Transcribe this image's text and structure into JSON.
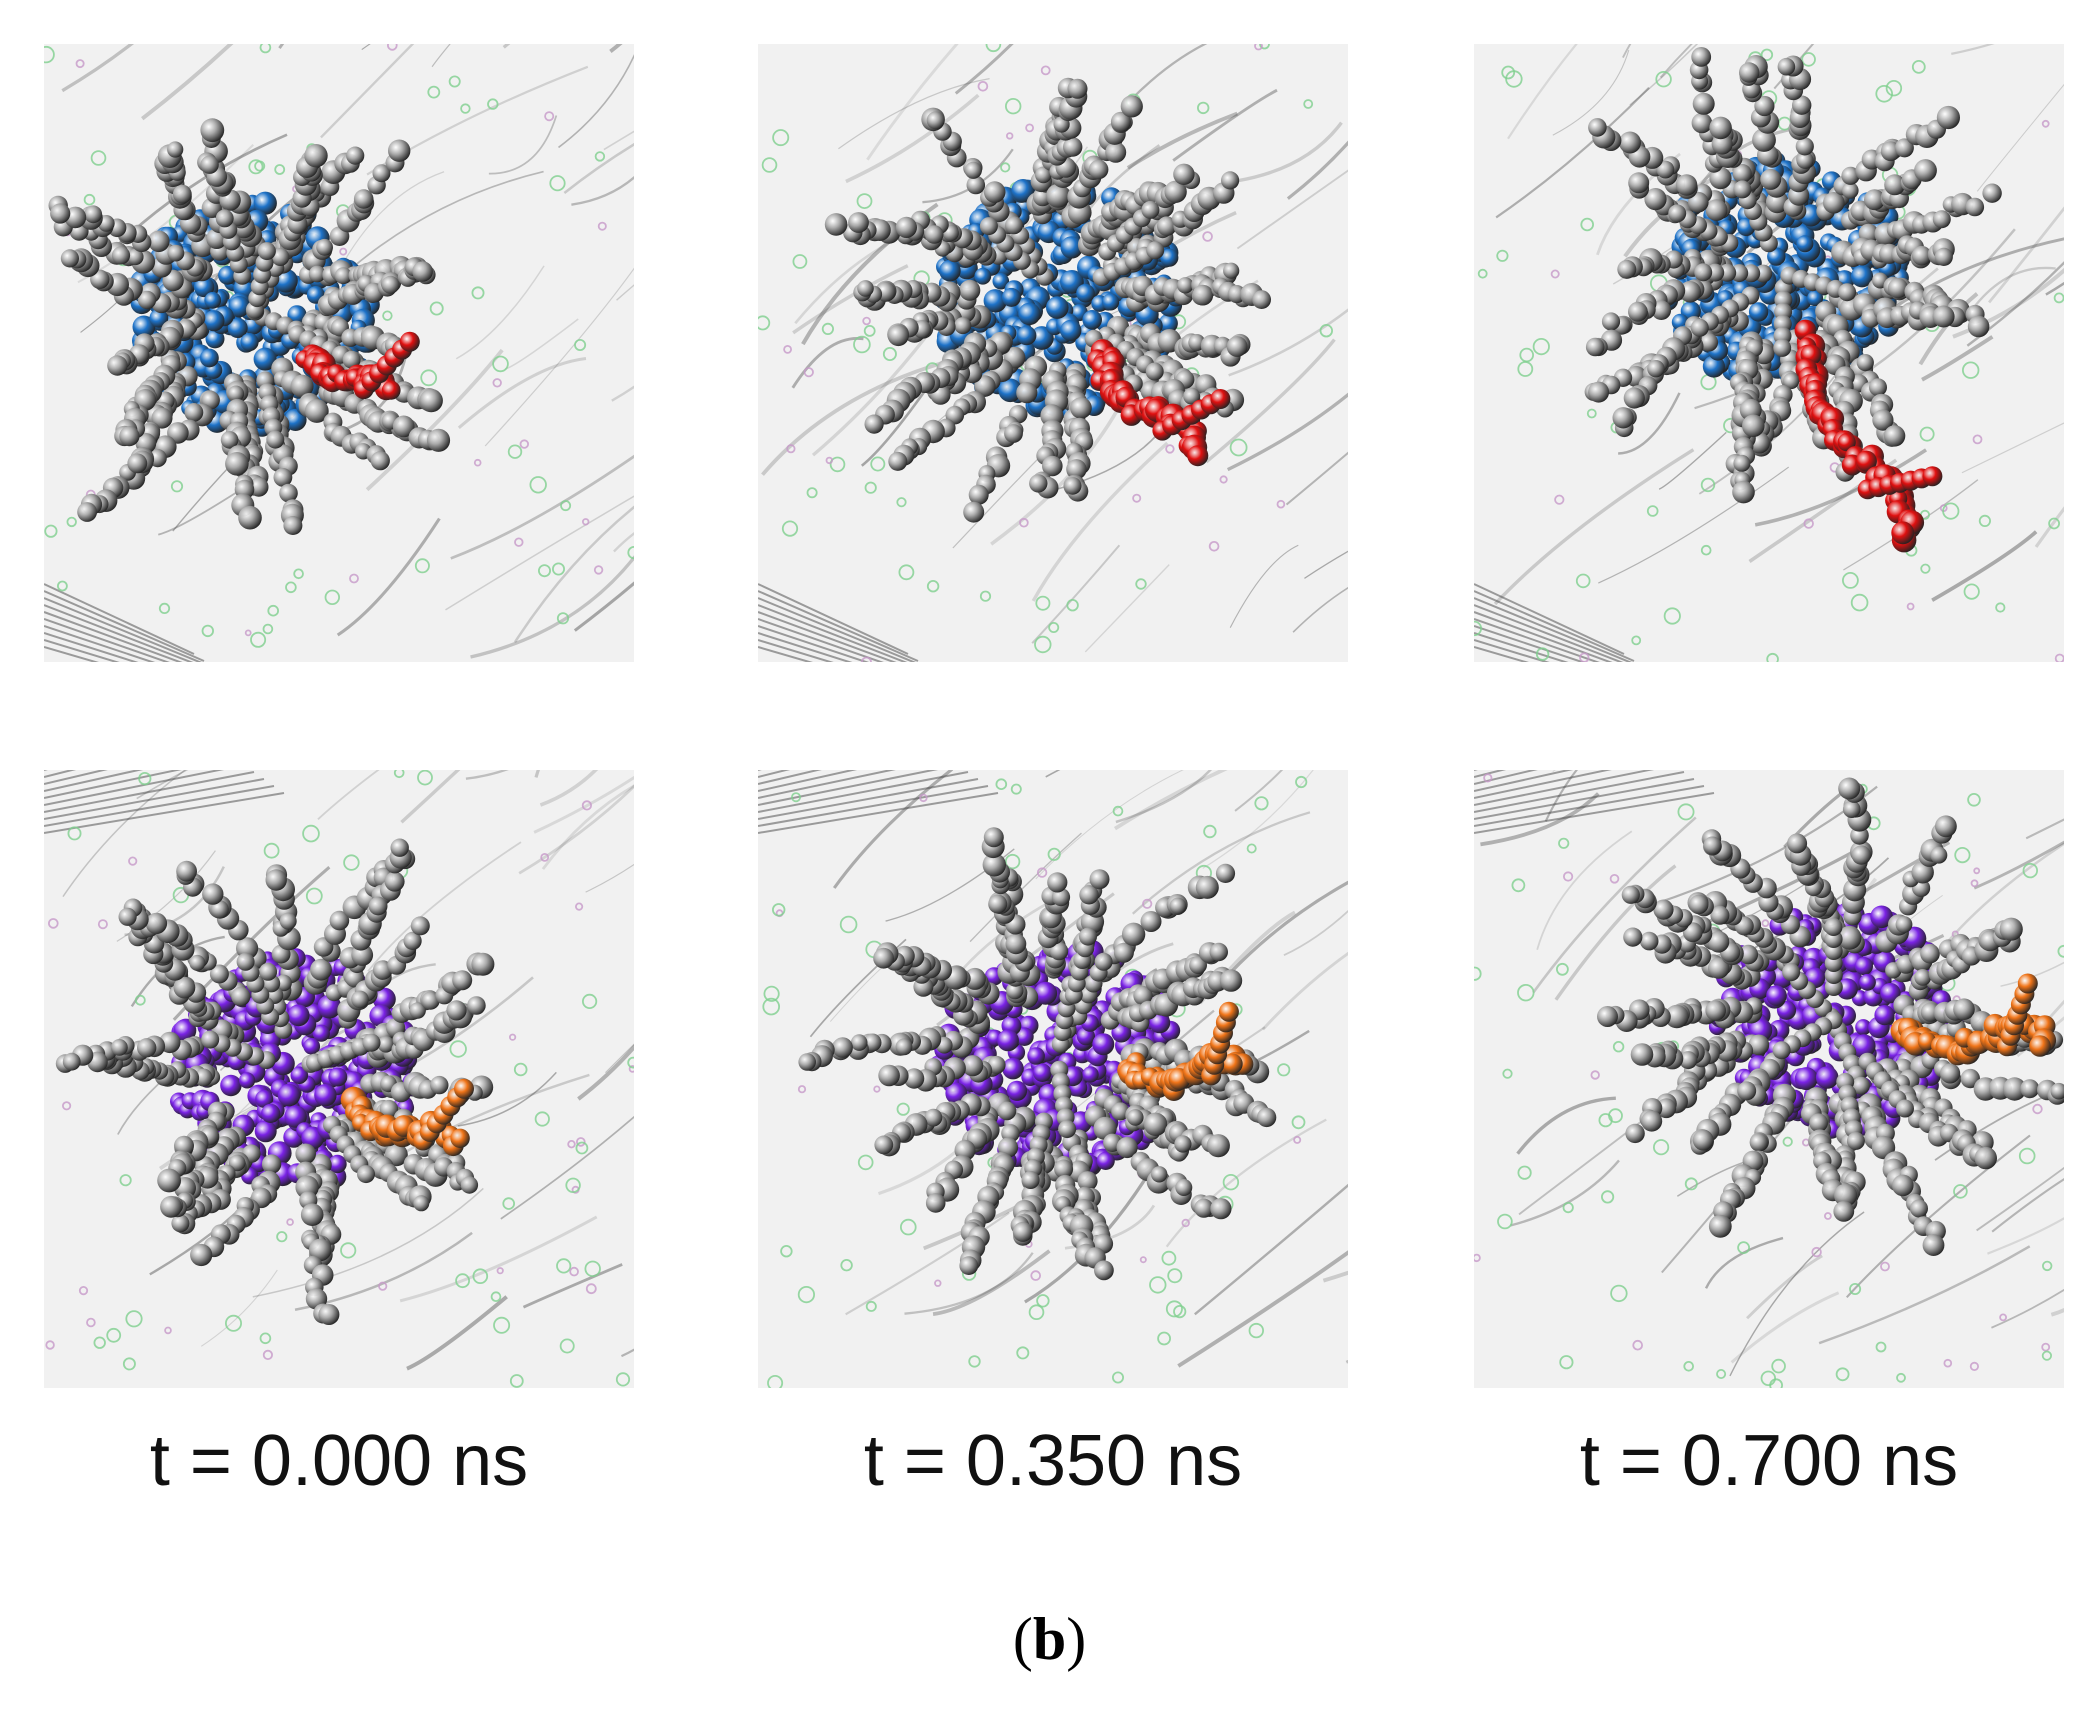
{
  "figure": {
    "panel_label_open": "(",
    "panel_label_letter": "b",
    "panel_label_close": ")"
  },
  "time_labels": [
    "t = 0.000 ns",
    "t = 0.350 ns",
    "t = 0.700 ns"
  ],
  "rows": [
    {
      "name": "top",
      "core_color": "#1e73c9",
      "chain_color": "#e01010",
      "shell_color": "#a9a9a9"
    },
    {
      "name": "bottom",
      "core_color": "#7a22e6",
      "chain_color": "#f07418",
      "shell_color": "#a9a9a9"
    }
  ],
  "colors": {
    "background": "#f1f1f1",
    "membrane_fold": "#5a5a5a",
    "ion_green": "#7fd08f",
    "ion_pink": "#c79ac9"
  }
}
